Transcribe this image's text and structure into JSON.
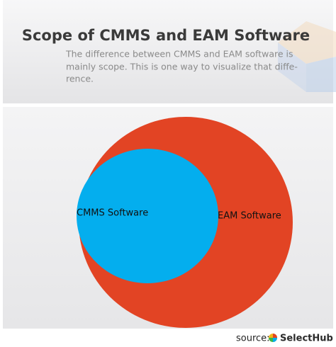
{
  "header": {
    "title": "Scope of CMMS and EAM Software",
    "subtitle_lines": [
      "The difference between CMMS and EAM software is",
      "mainly scope. This is one way to visualize that diffe-",
      "rence."
    ]
  },
  "nodes": [
    {
      "label": "EAM Software",
      "color": "#e24424"
    },
    {
      "label": "CMMS Software",
      "color": "#04aeee"
    }
  ],
  "footer": {
    "source_label": "source:",
    "brand": "SelectHub"
  }
}
